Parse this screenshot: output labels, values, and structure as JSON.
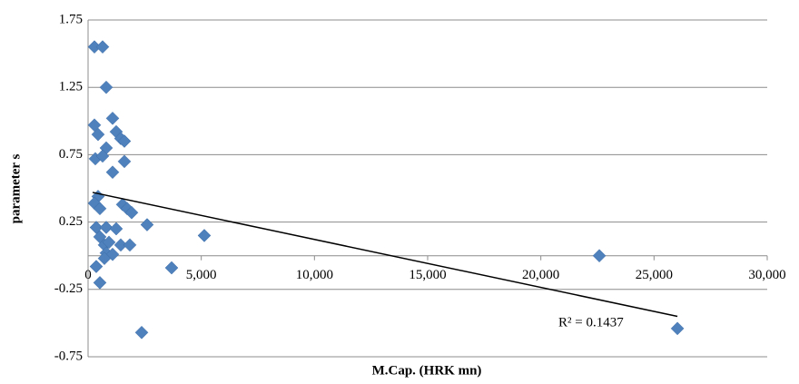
{
  "chart_data": {
    "type": "scatter",
    "x_label": "M.Cap. (HRK mn)",
    "y_label": "parameter s",
    "xlim": [
      0,
      30000
    ],
    "xticks": [
      0,
      {
        "value": 5000,
        "label": "5,000"
      },
      {
        "value": 10000,
        "label": "10,000"
      },
      {
        "value": 15000,
        "label": "15,000"
      },
      {
        "value": 20000,
        "label": "20,000"
      },
      {
        "value": 25000,
        "label": "25,000"
      },
      {
        "value": 30000,
        "label": "30,000"
      }
    ],
    "ylim": [
      -0.75,
      1.75
    ],
    "yticks": [
      -0.75,
      -0.25,
      0.25,
      0.75,
      1.25,
      1.75
    ],
    "grid": true,
    "series": [
      {
        "color": "#4f81bd",
        "x": [
          281,
          642,
          802,
          281,
          1083,
          441,
          1243,
          802,
          1444,
          1604,
          321,
          642,
          1604,
          1083,
          441,
          281,
          521,
          1524,
          1725,
          1925,
          2607,
          361,
          802,
          1243,
          521,
          5134,
          722,
          923,
          1444,
          1845,
          802,
          1083,
          722,
          361,
          3690,
          22583,
          521,
          2367,
          26033
        ],
        "values": [
          1.55,
          1.55,
          1.25,
          0.97,
          1.02,
          0.9,
          0.92,
          0.8,
          0.87,
          0.85,
          0.72,
          0.74,
          0.7,
          0.62,
          0.44,
          0.39,
          0.35,
          0.38,
          0.35,
          0.32,
          0.23,
          0.21,
          0.21,
          0.2,
          0.14,
          0.15,
          0.08,
          0.1,
          0.08,
          0.08,
          0.02,
          0.01,
          -0.02,
          -0.08,
          -0.09,
          0,
          -0.2,
          -0.57,
          -0.54
        ]
      }
    ],
    "trendline": {
      "color": "#000000",
      "x": [
        200,
        26033
      ],
      "values": [
        0.47,
        -0.45
      ]
    },
    "annotation": "R² = 0.1437"
  }
}
